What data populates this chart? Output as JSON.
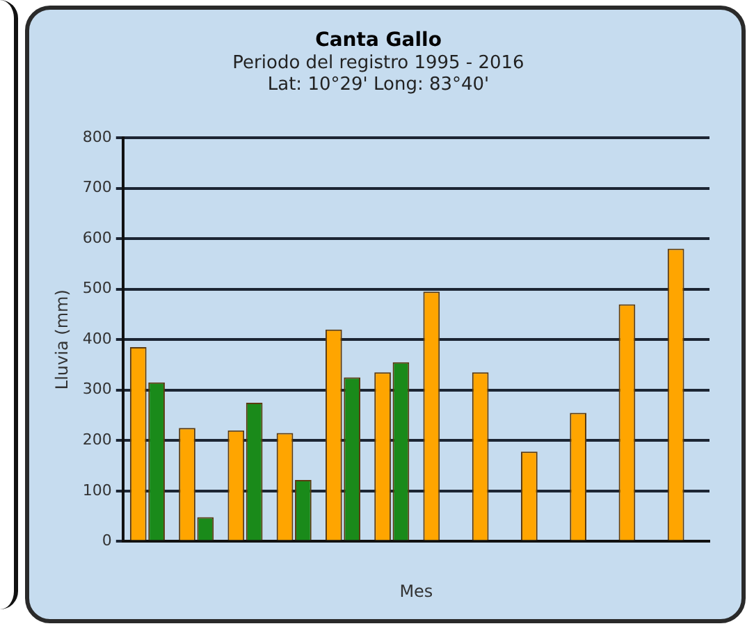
{
  "chart_data": {
    "type": "bar",
    "title": "Canta Gallo",
    "subtitle": "Periodo del registro 1995 - 2016\nLat: 10°29' Long: 83°40'",
    "xlabel": "Mes",
    "ylabel": "Lluvia (mm)",
    "categories": [
      null,
      null,
      null,
      null,
      null,
      null,
      null,
      null,
      null,
      null,
      null,
      null
    ],
    "series": [
      {
        "color": "#ffa500",
        "values": [
          385,
          225,
          220,
          215,
          420,
          335,
          495,
          335,
          178,
          255,
          470,
          580
        ]
      },
      {
        "color": "#1a8a1a",
        "values": [
          315,
          48,
          275,
          122,
          325,
          355,
          null,
          null,
          null,
          null,
          null,
          null
        ]
      }
    ],
    "ylim": [
      0,
      800
    ],
    "yticks": [
      0,
      100,
      200,
      300,
      400,
      500,
      600,
      700,
      800
    ],
    "grid": "y",
    "legend": false
  }
}
